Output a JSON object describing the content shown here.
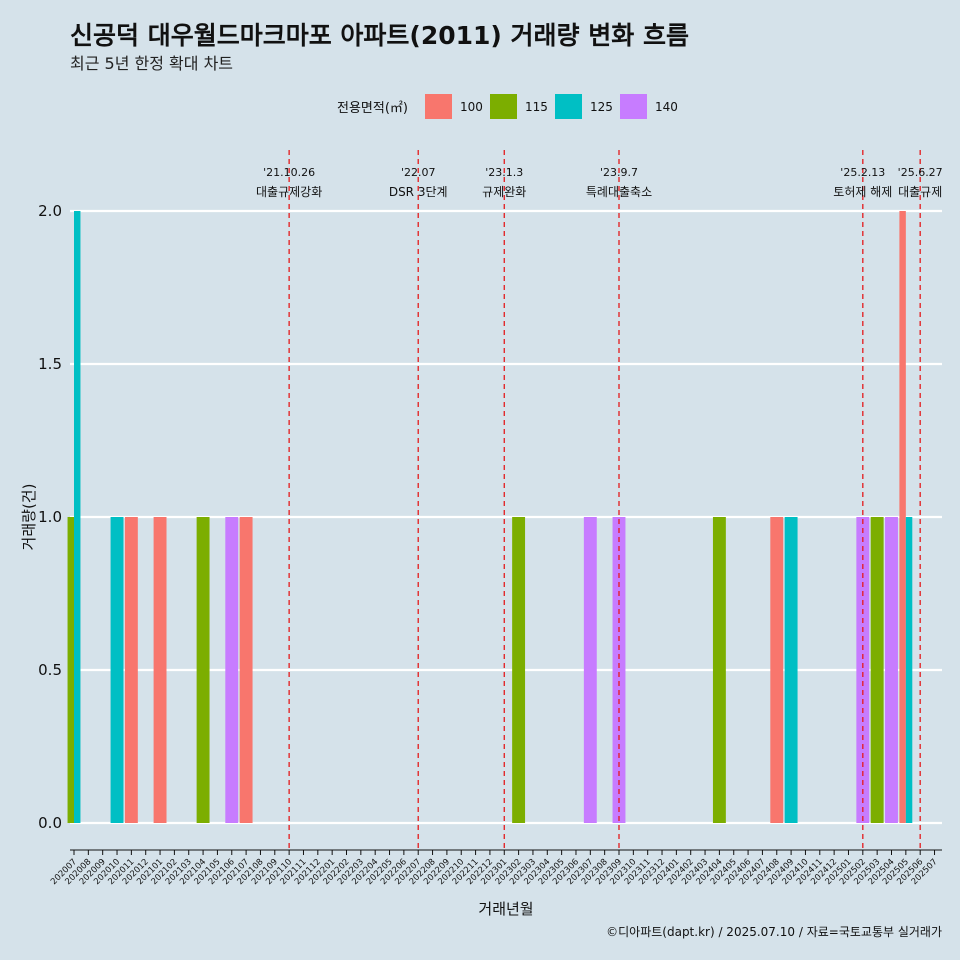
{
  "chart_data": {
    "type": "bar",
    "title": "신공덕 대우월드마크마포 아파트(2011) 거래량 변화 흐름",
    "subtitle": "최근 5년 한정 확대 차트",
    "xlabel": "거래년월",
    "ylabel": "거래량(건)",
    "ylim": [
      0,
      2
    ],
    "yticks": [
      "0.0",
      "0.5",
      "1.0",
      "1.5",
      "2.0"
    ],
    "legend": {
      "title": "전용면적(㎡)",
      "position": "top",
      "entries": [
        {
          "label": "100",
          "color": "#f8766d"
        },
        {
          "label": "115",
          "color": "#7cae00"
        },
        {
          "label": "125",
          "color": "#00bfc4"
        },
        {
          "label": "140",
          "color": "#c77cff"
        }
      ]
    },
    "categories": [
      "202007",
      "202008",
      "202009",
      "202010",
      "202011",
      "202012",
      "202101",
      "202102",
      "202103",
      "202104",
      "202105",
      "202106",
      "202107",
      "202108",
      "202109",
      "202110",
      "202111",
      "202112",
      "202201",
      "202202",
      "202203",
      "202204",
      "202205",
      "202206",
      "202207",
      "202208",
      "202209",
      "202210",
      "202211",
      "202212",
      "202301",
      "202302",
      "202303",
      "202304",
      "202305",
      "202306",
      "202307",
      "202308",
      "202309",
      "202310",
      "202311",
      "202312",
      "202401",
      "202402",
      "202403",
      "202404",
      "202405",
      "202406",
      "202407",
      "202408",
      "202409",
      "202410",
      "202411",
      "202412",
      "202501",
      "202502",
      "202503",
      "202504",
      "202505",
      "202506",
      "202507"
    ],
    "bars": [
      {
        "x": "202007",
        "size": "115",
        "value": 1
      },
      {
        "x": "202007",
        "size": "125",
        "value": 2
      },
      {
        "x": "202010",
        "size": "125",
        "value": 1
      },
      {
        "x": "202011",
        "size": "100",
        "value": 1
      },
      {
        "x": "202101",
        "size": "100",
        "value": 1
      },
      {
        "x": "202104",
        "size": "115",
        "value": 1
      },
      {
        "x": "202106",
        "size": "140",
        "value": 1
      },
      {
        "x": "202107",
        "size": "100",
        "value": 1
      },
      {
        "x": "202302",
        "size": "115",
        "value": 1
      },
      {
        "x": "202307",
        "size": "140",
        "value": 1
      },
      {
        "x": "202309",
        "size": "140",
        "value": 1
      },
      {
        "x": "202404",
        "size": "115",
        "value": 1
      },
      {
        "x": "202408",
        "size": "100",
        "value": 1
      },
      {
        "x": "202409",
        "size": "125",
        "value": 1
      },
      {
        "x": "202502",
        "size": "140",
        "value": 1
      },
      {
        "x": "202503",
        "size": "115",
        "value": 1
      },
      {
        "x": "202504",
        "size": "140",
        "value": 1
      },
      {
        "x": "202505",
        "size": "100",
        "value": 2
      },
      {
        "x": "202505",
        "size": "125",
        "value": 1
      }
    ],
    "events": [
      {
        "date": "'21.10.26",
        "label": "대출규제강화",
        "x": "202110",
        "row": 0
      },
      {
        "date": "'22.07",
        "label": "DSR 3단계",
        "x": "202207",
        "row": 0
      },
      {
        "date": "'23.1.3",
        "label": "규제완화",
        "x": "202301",
        "row": 0
      },
      {
        "date": "'23.9.7",
        "label": "특례대출축소",
        "x": "202309",
        "row": 0
      },
      {
        "date": "'25.2.13",
        "label": "토허제 해제",
        "x": "202502",
        "row": 0
      },
      {
        "date": "'25.6.27",
        "label": "대출규제",
        "x": "202506",
        "row": 0
      }
    ],
    "grid": true,
    "caption": "©디아파트(dapt.kr) / 2025.07.10 / 자료=국토교통부 실거래가"
  }
}
